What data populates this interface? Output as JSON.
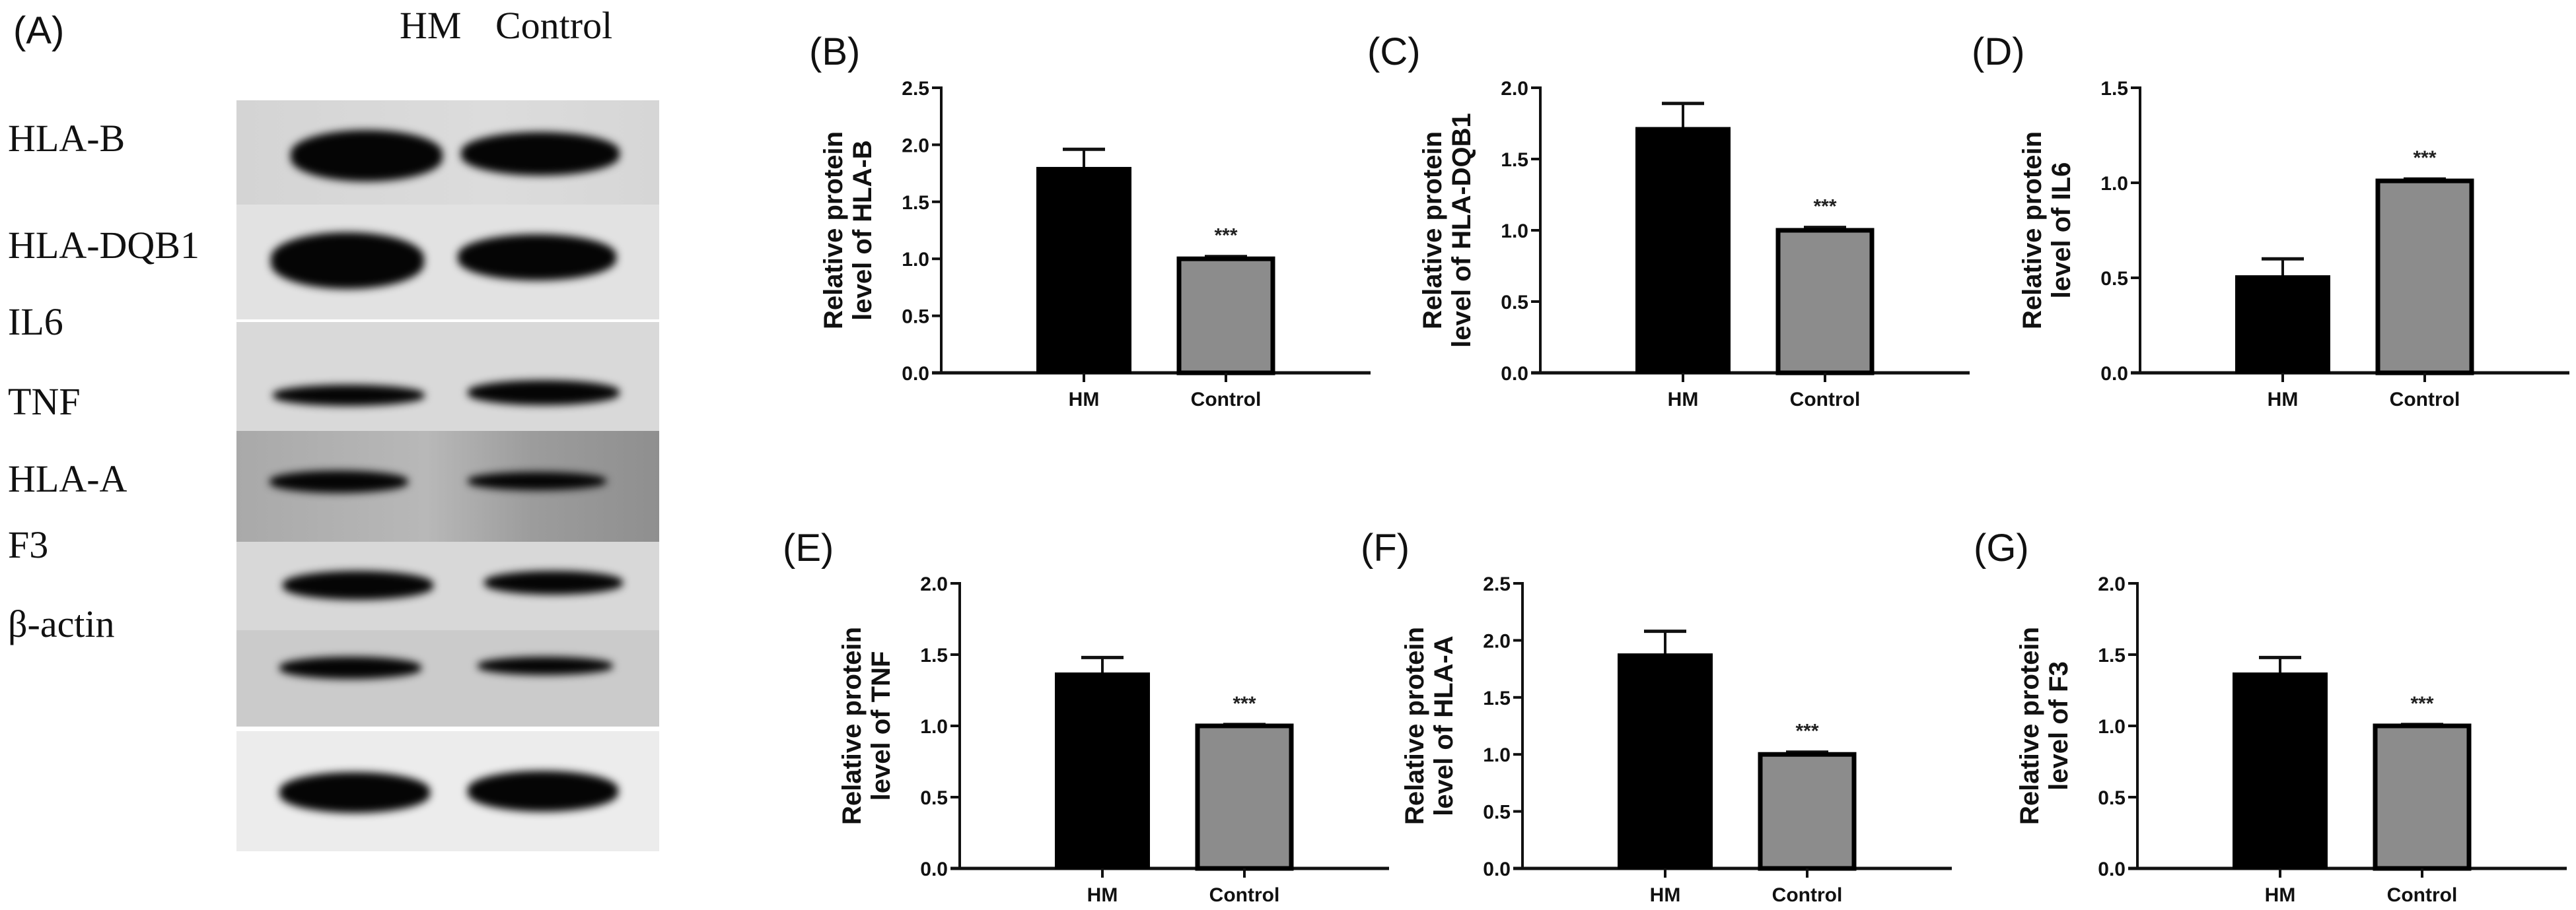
{
  "panel_a": {
    "letter": "(A)",
    "lane_headers": [
      "HM",
      "Control"
    ],
    "rows": [
      {
        "label": "HLA-B"
      },
      {
        "label": "HLA-DQB1"
      },
      {
        "label": "IL6"
      },
      {
        "label": "TNF"
      },
      {
        "label": "HLA-A"
      },
      {
        "label": "F3"
      },
      {
        "label": "β-actin"
      }
    ]
  },
  "colors": {
    "hm_bar": "#000000",
    "control_bar": "#8c8c8c",
    "axis": "#111111"
  },
  "chart_data": [
    {
      "letter": "(B)",
      "type": "bar",
      "categories": [
        "HM",
        "Control"
      ],
      "values": [
        1.8,
        1.0
      ],
      "error": [
        0.16,
        0.02
      ],
      "significance": [
        "",
        "***"
      ],
      "ylabel_lines": [
        "Relative protein",
        "level of HLA-B"
      ],
      "ylim": [
        0,
        2.5
      ],
      "yticks": [
        "0.0",
        "0.5",
        "1.0",
        "1.5",
        "2.0",
        "2.5"
      ],
      "ytick_values": [
        0,
        0.5,
        1.0,
        1.5,
        2.0,
        2.5
      ]
    },
    {
      "letter": "(C)",
      "type": "bar",
      "categories": [
        "HM",
        "Control"
      ],
      "values": [
        1.72,
        1.0
      ],
      "error": [
        0.17,
        0.02
      ],
      "significance": [
        "",
        "***"
      ],
      "ylabel_lines": [
        "Relative protein",
        "level of HLA-DQB1"
      ],
      "ylim": [
        0,
        2.0
      ],
      "yticks": [
        "0.0",
        "0.5",
        "1.0",
        "1.5",
        "2.0"
      ],
      "ytick_values": [
        0,
        0.5,
        1.0,
        1.5,
        2.0
      ]
    },
    {
      "letter": "(D)",
      "type": "bar",
      "categories": [
        "HM",
        "Control"
      ],
      "values": [
        0.51,
        1.01
      ],
      "error": [
        0.09,
        0.01
      ],
      "significance": [
        "",
        "***"
      ],
      "ylabel_lines": [
        "Relative protein",
        "level of IL6"
      ],
      "ylim": [
        0,
        1.5
      ],
      "yticks": [
        "0.0",
        "0.5",
        "1.0",
        "1.5"
      ],
      "ytick_values": [
        0,
        0.5,
        1.0,
        1.5
      ]
    },
    {
      "letter": "(E)",
      "type": "bar",
      "categories": [
        "HM",
        "Control"
      ],
      "values": [
        1.37,
        1.0
      ],
      "error": [
        0.11,
        0.01
      ],
      "significance": [
        "",
        "***"
      ],
      "ylabel_lines": [
        "Relative protein",
        "level of TNF"
      ],
      "ylim": [
        0,
        2.0
      ],
      "yticks": [
        "0.0",
        "0.5",
        "1.0",
        "1.5",
        "2.0"
      ],
      "ytick_values": [
        0,
        0.5,
        1.0,
        1.5,
        2.0
      ]
    },
    {
      "letter": "(F)",
      "type": "bar",
      "categories": [
        "HM",
        "Control"
      ],
      "values": [
        1.88,
        1.0
      ],
      "error": [
        0.2,
        0.02
      ],
      "significance": [
        "",
        "***"
      ],
      "ylabel_lines": [
        "Relative protein",
        "level of HLA-A"
      ],
      "ylim": [
        0,
        2.5
      ],
      "yticks": [
        "0.0",
        "0.5",
        "1.0",
        "1.5",
        "2.0",
        "2.5"
      ],
      "ytick_values": [
        0,
        0.5,
        1.0,
        1.5,
        2.0,
        2.5
      ]
    },
    {
      "letter": "(G)",
      "type": "bar",
      "categories": [
        "HM",
        "Control"
      ],
      "values": [
        1.37,
        1.0
      ],
      "error": [
        0.11,
        0.01
      ],
      "significance": [
        "",
        "***"
      ],
      "ylabel_lines": [
        "Relative protein",
        "level of F3"
      ],
      "ylim": [
        0,
        2.0
      ],
      "yticks": [
        "0.0",
        "0.5",
        "1.0",
        "1.5",
        "2.0"
      ],
      "ytick_values": [
        0,
        0.5,
        1.0,
        1.5,
        2.0
      ]
    }
  ]
}
